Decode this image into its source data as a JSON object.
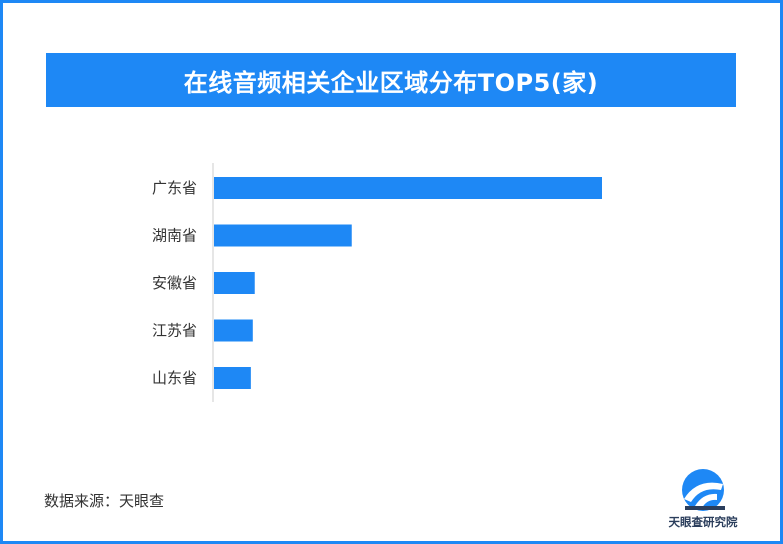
{
  "title": "在线音频相关企业区域分布TOP5(家)",
  "source": "数据来源：天眼查",
  "logo_text": "天眼查研究院",
  "colors": {
    "accent": "#1e88f5",
    "bar": "#1e88f5",
    "border": "#1e88f5",
    "axis": "#cccccc"
  },
  "chart_data": {
    "type": "bar",
    "orientation": "horizontal",
    "title": "在线音频相关企业区域分布TOP5(家)",
    "categories": [
      "广东省",
      "湖南省",
      "安徽省",
      "江苏省",
      "山东省"
    ],
    "values": [
      1000,
      355,
      105,
      100,
      95
    ],
    "xlim": [
      0,
      1000
    ],
    "xlabel": "",
    "ylabel": "",
    "grid": false,
    "legend": "none"
  }
}
